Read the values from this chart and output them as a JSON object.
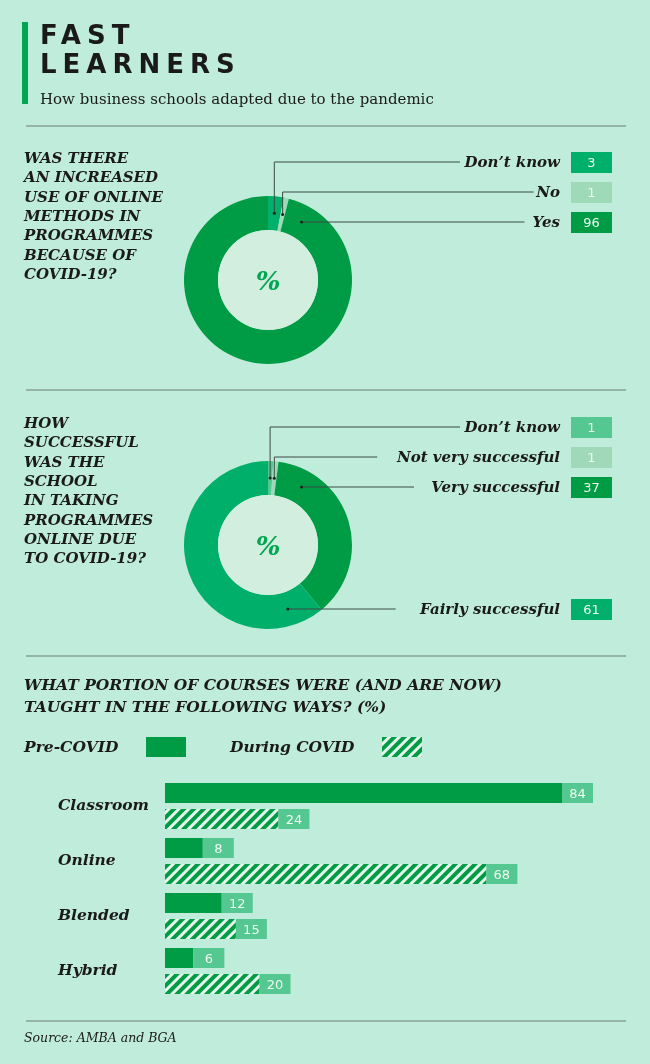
{
  "chart_data": [
    {
      "type": "other",
      "title": "FAST\nLEARNERS",
      "subtitle": "How business schools adapted due to the pandemic"
    },
    {
      "type": "donut",
      "title": "WAS THERE\nAN INCREASED\nUSE OF ONLINE\nMETHODS IN\nPROGRAMMES\nBECAUSE OF\nCOVID-19?",
      "categories": [
        "Don’t know",
        "No",
        "Yes"
      ],
      "values": [
        3,
        1,
        96
      ],
      "colors": [
        "#00b06a",
        "#9fdab8",
        "#009c45"
      ],
      "data_labels": true,
      "legend": "right",
      "annotations": [
        "%"
      ]
    },
    {
      "type": "donut",
      "title": "HOW\nSUCCESSFUL\nWAS THE\nSCHOOL\nIN TAKING\nPROGRAMMES\nONLINE DUE\nTO COVID-19?",
      "categories": [
        "Don’t know",
        "Not very successful",
        "Very successful",
        "Fairly successful"
      ],
      "values": [
        1,
        1,
        37,
        61
      ],
      "colors": [
        "#55c790",
        "#a0d9b9",
        "#009c45",
        "#00b06a"
      ],
      "data_labels": true,
      "legend": "right",
      "annotations": [
        "%"
      ]
    },
    {
      "type": "bar",
      "orientation": "horizontal",
      "title": "WHAT PORTION OF COURSES WERE (AND ARE NOW)\nTAUGHT IN THE FOLLOWING WAYS? (%)",
      "categories": [
        "Classroom",
        "Online",
        "Blended",
        "Hybrid"
      ],
      "series": [
        {
          "name": "Pre-COVID",
          "color": "#009c45",
          "values": [
            84,
            8,
            12,
            6
          ]
        },
        {
          "name": "During COVID",
          "color": "#009c45",
          "values": [
            24,
            68,
            15,
            20
          ]
        }
      ],
      "data_labels": true,
      "legend": "top left",
      "annotations": [
        "Source: AMBA and BGA"
      ]
    }
  ]
}
